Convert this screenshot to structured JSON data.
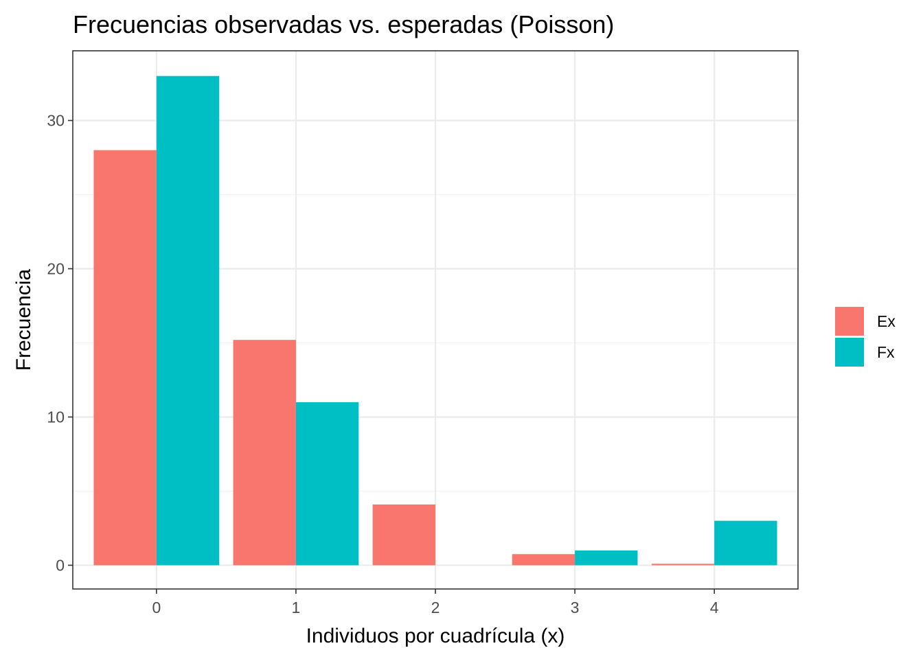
{
  "chart_data": {
    "type": "bar",
    "title": "Frecuencias observadas vs. esperadas (Poisson)",
    "xlabel": "Individuos por cuadrícula (x)",
    "ylabel": "Frecuencia",
    "categories": [
      "0",
      "1",
      "2",
      "3",
      "4"
    ],
    "series": [
      {
        "name": "Ex",
        "color": "#F8766D",
        "values": [
          28.0,
          15.2,
          4.1,
          0.75,
          0.1
        ]
      },
      {
        "name": "Fx",
        "color": "#00BFC4",
        "values": [
          33,
          11,
          0,
          1,
          3
        ]
      }
    ],
    "yticks": [
      0,
      10,
      20,
      30
    ],
    "ylim": [
      -1.6,
      34.7
    ],
    "grid": true,
    "legend_position": "right"
  }
}
